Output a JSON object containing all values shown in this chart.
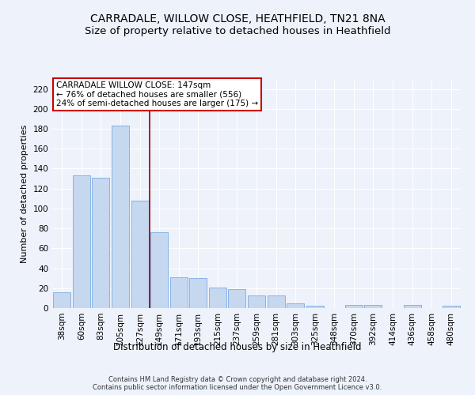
{
  "title": "CARRADALE, WILLOW CLOSE, HEATHFIELD, TN21 8NA",
  "subtitle": "Size of property relative to detached houses in Heathfield",
  "xlabel": "Distribution of detached houses by size in Heathfield",
  "ylabel": "Number of detached properties",
  "categories": [
    "38sqm",
    "60sqm",
    "83sqm",
    "105sqm",
    "127sqm",
    "149sqm",
    "171sqm",
    "193sqm",
    "215sqm",
    "237sqm",
    "259sqm",
    "281sqm",
    "303sqm",
    "325sqm",
    "348sqm",
    "370sqm",
    "392sqm",
    "414sqm",
    "436sqm",
    "458sqm",
    "480sqm"
  ],
  "values": [
    16,
    133,
    131,
    183,
    108,
    76,
    31,
    30,
    21,
    19,
    13,
    13,
    5,
    2,
    0,
    3,
    3,
    0,
    3,
    0,
    2
  ],
  "bar_color": "#c5d8f0",
  "bar_edge_color": "#7aabe0",
  "marker_line_index": 5,
  "marker_line_color": "#990000",
  "annotation_line1": "CARRADALE WILLOW CLOSE: 147sqm",
  "annotation_line2": "← 76% of detached houses are smaller (556)",
  "annotation_line3": "24% of semi-detached houses are larger (175) →",
  "annotation_box_color": "#ffffff",
  "annotation_box_edge_color": "#cc0000",
  "ylim": [
    0,
    230
  ],
  "yticks": [
    0,
    20,
    40,
    60,
    80,
    100,
    120,
    140,
    160,
    180,
    200,
    220
  ],
  "title_fontsize": 10,
  "subtitle_fontsize": 9.5,
  "xlabel_fontsize": 8.5,
  "ylabel_fontsize": 8,
  "tick_fontsize": 7.5,
  "annotation_fontsize": 7.5,
  "footer_line1": "Contains HM Land Registry data © Crown copyright and database right 2024.",
  "footer_line2": "Contains public sector information licensed under the Open Government Licence v3.0.",
  "bg_color": "#eef2fa",
  "grid_color": "#ffffff"
}
